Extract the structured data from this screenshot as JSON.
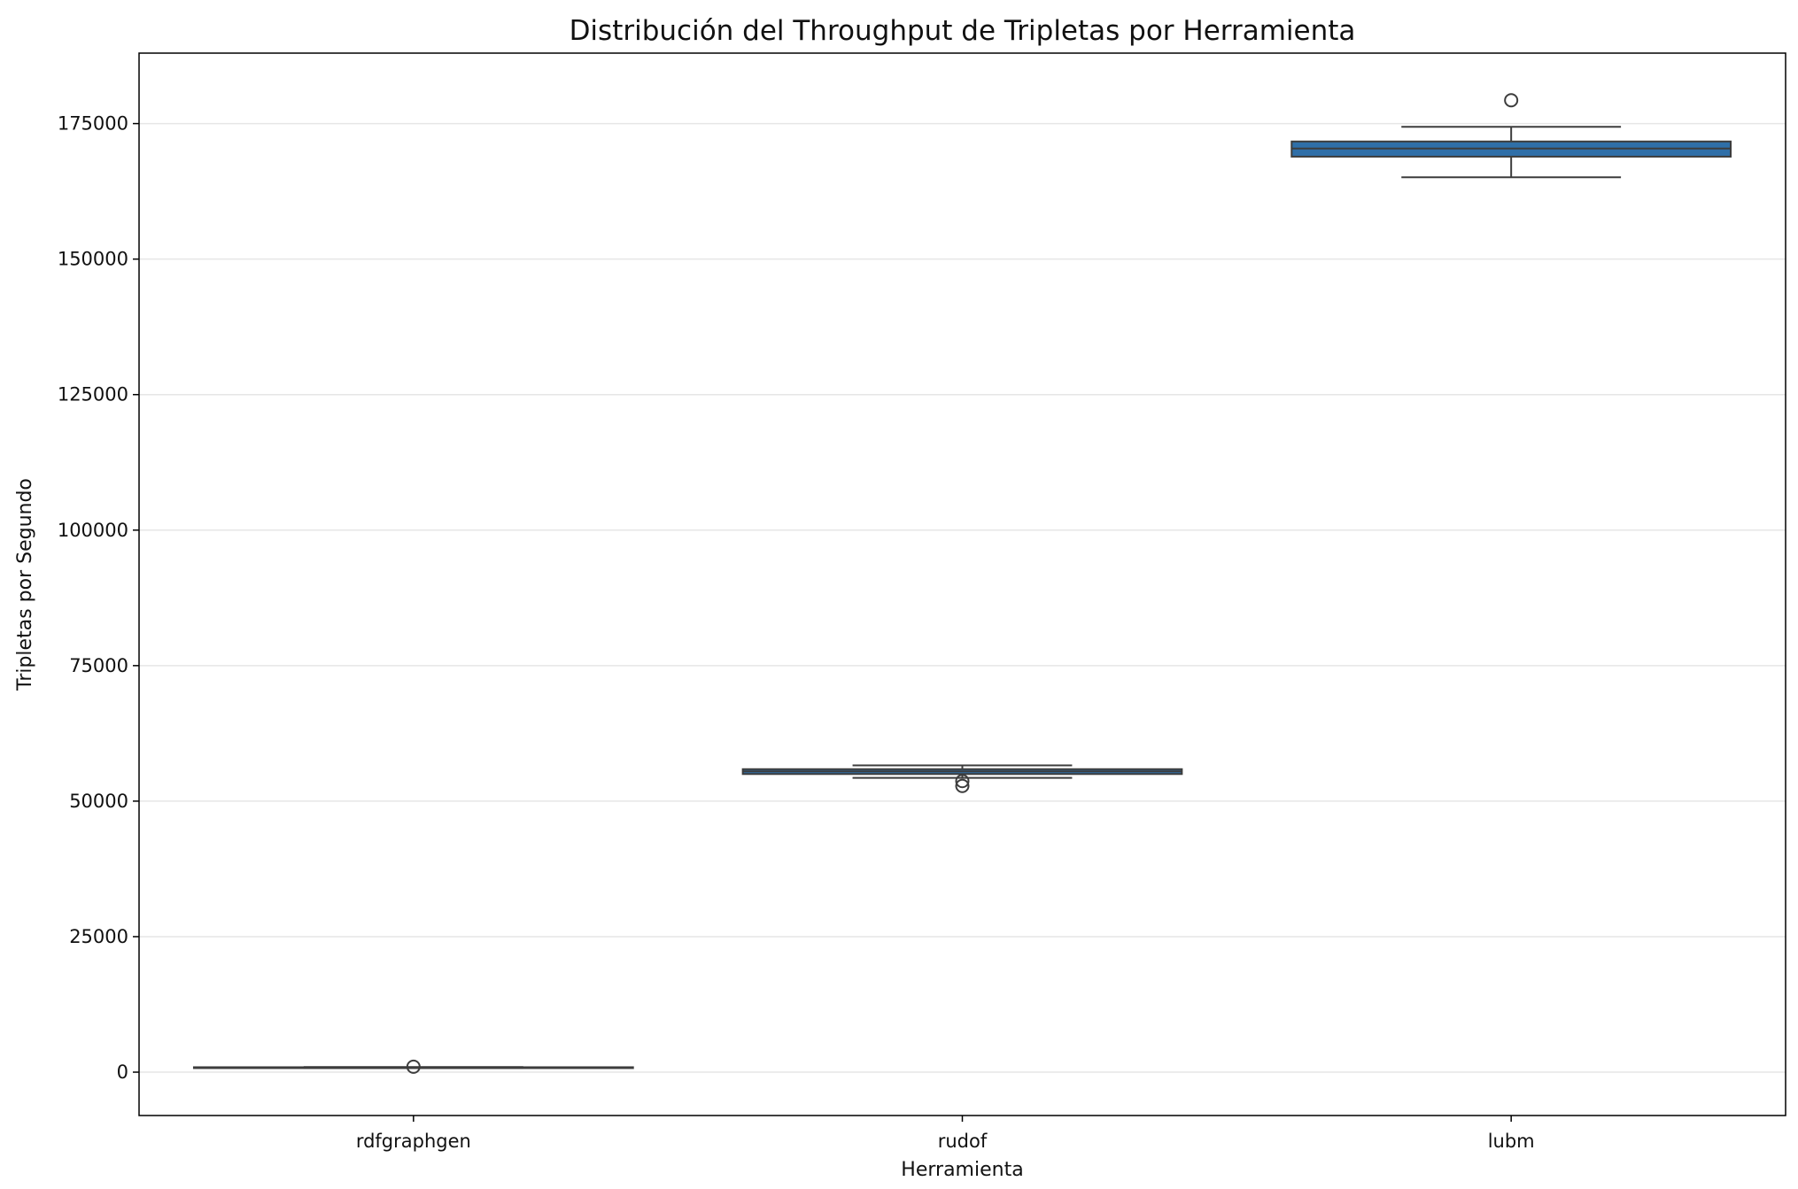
{
  "chart_data": {
    "type": "box",
    "title": "Distribución del Throughput de Tripletas por Herramienta",
    "xlabel": "Herramienta",
    "ylabel": "Tripletas por Segundo",
    "ylim": [
      -8000,
      188000
    ],
    "yticks": [
      0,
      25000,
      50000,
      75000,
      100000,
      125000,
      150000,
      175000
    ],
    "ytick_labels": [
      "0",
      "25000",
      "50000",
      "75000",
      "100000",
      "125000",
      "150000",
      "175000"
    ],
    "grid": "horizontal",
    "categories": [
      "rdfgraphgen",
      "rudof",
      "lubm"
    ],
    "boxes": [
      {
        "category": "rdfgraphgen",
        "whisker_low": 800,
        "q1": 850,
        "median": 880,
        "q3": 910,
        "whisker_high": 950,
        "outliers": [
          1000
        ]
      },
      {
        "category": "rudof",
        "whisker_low": 54300,
        "q1": 55000,
        "median": 55500,
        "q3": 55900,
        "whisker_high": 56600,
        "outliers": [
          53700,
          52800
        ]
      },
      {
        "category": "lubm",
        "whisker_low": 165100,
        "q1": 168900,
        "median": 170400,
        "q3": 171700,
        "whisker_high": 174400,
        "outliers": [
          179300
        ]
      }
    ],
    "colors": {
      "box_fill": "#2f6fa8",
      "box_line": "#3d3d3d",
      "grid": "#e6e6e6",
      "axes": "#000000"
    }
  }
}
